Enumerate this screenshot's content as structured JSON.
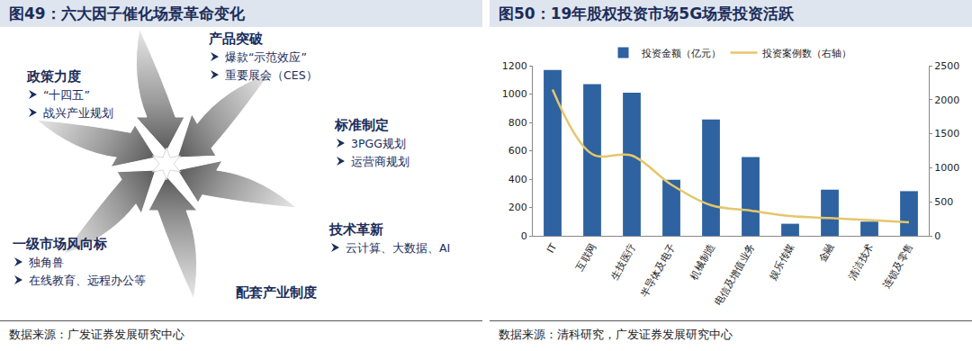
{
  "diagram": {
    "title": "图49：六大因子催化场景革命变化",
    "source": "数据来源：广发证券发展研究中心",
    "nodes": [
      {
        "label": "政策力度",
        "items": [
          "“十四五”",
          "战兴产业规划"
        ]
      },
      {
        "label": "产品突破",
        "items": [
          "爆款“示范效应”",
          "重要展会（CES）"
        ]
      },
      {
        "label": "标准制定",
        "items": [
          "3PGG规划",
          "运营商规划"
        ]
      },
      {
        "label": "技术革新",
        "items": [
          "云计算、大数据、AI"
        ]
      },
      {
        "label": "配套产业制度",
        "items": []
      },
      {
        "label": "一级市场风向标",
        "items": [
          "独角兽",
          "在线教育、远程办公等"
        ]
      }
    ]
  },
  "chart_data": {
    "type": "bar",
    "title": "图50：19年股权投资市场5G场景投资活跃",
    "source": "数据来源：清科研究，广发证券发展研究中心",
    "categories": [
      "IT",
      "互联网",
      "生技医疗",
      "半导体及电子",
      "机械制造",
      "电信及增值业务",
      "娱乐传媒",
      "金融",
      "清洁技术",
      "连锁及零售"
    ],
    "series": [
      {
        "name": "投资金额（亿元）",
        "type": "bar",
        "color": "#2e62a0",
        "values": [
          1170,
          1070,
          1010,
          395,
          820,
          555,
          85,
          325,
          100,
          315
        ]
      },
      {
        "name": "投资案例数（右轴）",
        "type": "line",
        "axis": "y2",
        "color": "#e6c66b",
        "values": [
          2150,
          1200,
          1180,
          750,
          450,
          370,
          290,
          260,
          230,
          200
        ]
      }
    ],
    "ylim": [
      0,
      1200
    ],
    "yticks": [
      0,
      200,
      400,
      600,
      800,
      1000,
      1200
    ],
    "y2lim": [
      0,
      2500
    ],
    "y2ticks": [
      0,
      500,
      1000,
      1500,
      2000,
      2500
    ],
    "grid": false,
    "legend": "top"
  }
}
